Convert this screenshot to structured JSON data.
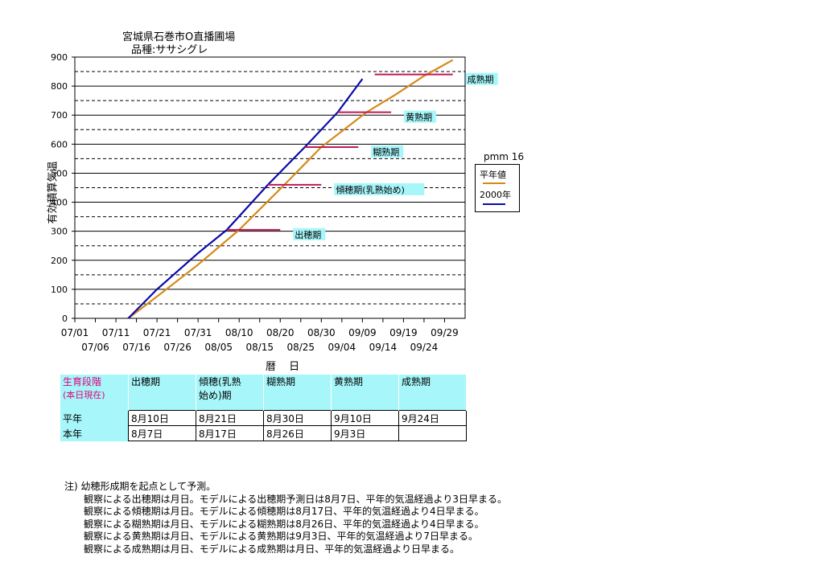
{
  "title": "宮城県石巻市O直播圃場",
  "subtitle": "品種:ササシグレ",
  "pmm": "pmm 16",
  "legend": {
    "normal": "平年値",
    "year": "2000年"
  },
  "colors": {
    "normal": "#d48a18",
    "year": "#0a0aa8",
    "stage_marker": "#c0185a",
    "label_bg": "#a6f6fa"
  },
  "chart_data": {
    "type": "line",
    "xlabel": "暦 日",
    "ylabel": "有効積算気温",
    "ylim": [
      0,
      900
    ],
    "yticks": [
      0,
      100,
      200,
      300,
      400,
      500,
      600,
      700,
      800,
      900
    ],
    "x_tick_labels_row1": [
      "07/01",
      "07/11",
      "07/21",
      "07/31",
      "08/10",
      "08/20",
      "08/30",
      "09/09",
      "09/19",
      "09/29"
    ],
    "x_tick_labels_row2": [
      "07/06",
      "07/16",
      "07/26",
      "08/05",
      "08/15",
      "08/25",
      "09/04",
      "09/14",
      "09/24"
    ],
    "x_start": "07/01",
    "x_end": "10/04",
    "grid": "horizontal solid at 100s, dashed at 50s",
    "series": [
      {
        "name": "平年値",
        "x": [
          "07/14",
          "07/21",
          "07/31",
          "08/10",
          "08/21",
          "08/30",
          "09/10",
          "09/17",
          "09/24",
          "10/01"
        ],
        "y": [
          0,
          75,
          185,
          305,
          460,
          590,
          710,
          770,
          835,
          890
        ]
      },
      {
        "name": "2000年",
        "x": [
          "07/14",
          "07/21",
          "07/31",
          "08/07",
          "08/17",
          "08/26",
          "09/03",
          "09/09"
        ],
        "y": [
          0,
          100,
          225,
          305,
          460,
          590,
          710,
          825
        ]
      }
    ],
    "stage_markers": [
      {
        "label": "出穂期",
        "y": 305,
        "x_from": "08/07",
        "x_to": "08/20"
      },
      {
        "label": "傾穂期(乳熟始め)",
        "y": 460,
        "x_from": "08/17",
        "x_to": "08/30"
      },
      {
        "label": "糊熟期",
        "y": 590,
        "x_from": "08/26",
        "x_to": "09/08"
      },
      {
        "label": "黄熟期",
        "y": 710,
        "x_from": "09/03",
        "x_to": "09/16"
      },
      {
        "label": "成熟期",
        "y": 840,
        "x_from": "09/12",
        "x_to": "10/01"
      }
    ]
  },
  "table": {
    "header_label_1": "生育段階",
    "header_label_2": "(本日現在)",
    "stages": [
      "出穂期",
      "傾穂(乳熟始め)期",
      "糊熟期",
      "黄熟期",
      "成熟期"
    ],
    "stage_2_line1": "傾穂(乳熟",
    "stage_2_line2": "始め)期",
    "rows": [
      {
        "label": "平年",
        "values": [
          "8月10日",
          "8月21日",
          "8月30日",
          "9月10日",
          "9月24日"
        ]
      },
      {
        "label": "本年",
        "values": [
          "8月7日",
          "8月17日",
          "8月26日",
          "9月3日",
          ""
        ]
      }
    ]
  },
  "notes": {
    "head": "注) 幼穂形成期を起点として予測。",
    "lines": [
      "観察による出穂期は月日。モデルによる出穂期予測日は8月7日、平年的気温経過より3日早まる。",
      "観察による傾穂期は月日。モデルによる傾穂期は8月17日、平年的気温経過より4日早まる。",
      "観察による糊熟期は月日、モデルによる糊熟期は8月26日、平年的気温経過より4日早まる。",
      "観察による黄熟期は月日、モデルによる黄熟期は9月3日、平年的気温経過より7日早まる。",
      "観察による成熟期は月日、モデルによる成熟期は月日、平年的気温経過より日早まる。"
    ]
  }
}
